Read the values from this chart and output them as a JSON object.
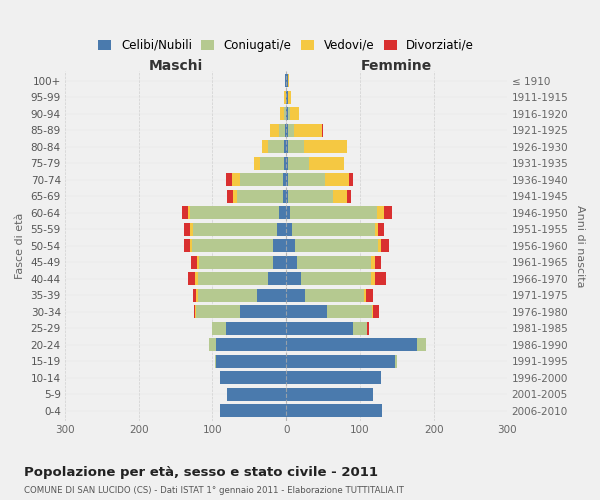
{
  "age_groups": [
    "0-4",
    "5-9",
    "10-14",
    "15-19",
    "20-24",
    "25-29",
    "30-34",
    "35-39",
    "40-44",
    "45-49",
    "50-54",
    "55-59",
    "60-64",
    "65-69",
    "70-74",
    "75-79",
    "80-84",
    "85-89",
    "90-94",
    "95-99",
    "100+"
  ],
  "birth_years": [
    "2006-2010",
    "2001-2005",
    "1996-2000",
    "1991-1995",
    "1986-1990",
    "1981-1985",
    "1976-1980",
    "1971-1975",
    "1966-1970",
    "1961-1965",
    "1956-1960",
    "1951-1955",
    "1946-1950",
    "1941-1945",
    "1936-1940",
    "1931-1935",
    "1926-1930",
    "1921-1925",
    "1916-1920",
    "1911-1915",
    "≤ 1910"
  ],
  "maschi": {
    "celibi": [
      90,
      80,
      90,
      95,
      95,
      82,
      62,
      40,
      25,
      18,
      18,
      12,
      10,
      5,
      5,
      3,
      3,
      2,
      0,
      0,
      2
    ],
    "coniugati": [
      0,
      0,
      0,
      2,
      10,
      18,
      60,
      80,
      95,
      100,
      110,
      115,
      120,
      62,
      58,
      32,
      22,
      8,
      3,
      0,
      0
    ],
    "vedovi": [
      0,
      0,
      0,
      0,
      0,
      0,
      1,
      2,
      3,
      3,
      3,
      3,
      3,
      5,
      10,
      8,
      8,
      12,
      5,
      3,
      0
    ],
    "divorziati": [
      0,
      0,
      0,
      0,
      0,
      0,
      2,
      5,
      10,
      8,
      8,
      8,
      8,
      8,
      8,
      0,
      0,
      0,
      0,
      0,
      0
    ]
  },
  "femmine": {
    "nubili": [
      130,
      118,
      128,
      148,
      178,
      90,
      55,
      25,
      20,
      15,
      12,
      8,
      5,
      3,
      3,
      3,
      2,
      2,
      2,
      2,
      2
    ],
    "coniugate": [
      0,
      0,
      0,
      2,
      12,
      20,
      62,
      80,
      95,
      100,
      112,
      112,
      118,
      60,
      50,
      28,
      22,
      8,
      3,
      0,
      0
    ],
    "vedove": [
      0,
      0,
      0,
      0,
      0,
      0,
      1,
      3,
      5,
      5,
      5,
      5,
      10,
      20,
      32,
      48,
      58,
      38,
      12,
      5,
      2
    ],
    "divorziate": [
      0,
      0,
      0,
      0,
      0,
      2,
      8,
      10,
      15,
      8,
      10,
      8,
      10,
      5,
      5,
      0,
      0,
      2,
      0,
      0,
      0
    ]
  },
  "colors": {
    "celibi": "#4a7aad",
    "coniugati": "#b5c990",
    "vedovi": "#f5c842",
    "divorziati": "#d93030"
  },
  "title": "Popolazione per età, sesso e stato civile - 2011",
  "subtitle": "COMUNE DI SAN LUCIDO (CS) - Dati ISTAT 1° gennaio 2011 - Elaborazione TUTTITALIA.IT",
  "maschi_label": "Maschi",
  "femmine_label": "Femmine",
  "ylabel_left": "Fasce di età",
  "ylabel_right": "Anni di nascita",
  "xlim": 300,
  "bg_color": "#f0f0f0",
  "legend_labels": [
    "Celibi/Nubili",
    "Coniugati/e",
    "Vedovi/e",
    "Divorziati/e"
  ],
  "xticks": [
    -300,
    -200,
    -100,
    0,
    100,
    200,
    300
  ]
}
